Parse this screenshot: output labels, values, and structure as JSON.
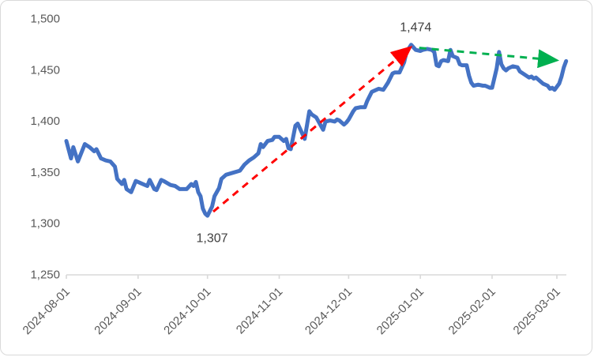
{
  "chart_data": {
    "type": "line",
    "title": "",
    "grid": false,
    "legend": false,
    "line_color": "#4472C4",
    "axis_color": "#d9d9d9",
    "axis_label_color": "#595959",
    "annotation_color": "#404040",
    "y_axis": {
      "min": 1250,
      "max": 1500,
      "tick_values": [
        1500,
        1450,
        1400,
        1350,
        1300,
        1250
      ],
      "tick_labels": [
        "1,500",
        "1,450",
        "1,400",
        "1,350",
        "1,300",
        "1,250"
      ]
    },
    "x_axis": {
      "tick_labels": [
        "2024-08-01",
        "2024-09-01",
        "2024-10-01",
        "2024-11-01",
        "2024-12-01",
        "2025-01-01",
        "2025-02-01",
        "2025-03-01"
      ],
      "tick_days": [
        0,
        31,
        61,
        92,
        122,
        153,
        184,
        212
      ],
      "last_tick_day": 212,
      "rotation_deg": -45
    },
    "series": [
      {
        "name": "value-line",
        "color": "#4472C4",
        "points": [
          [
            0,
            1380
          ],
          [
            2,
            1363
          ],
          [
            3,
            1374
          ],
          [
            5,
            1360
          ],
          [
            8,
            1377
          ],
          [
            10,
            1374
          ],
          [
            12,
            1370
          ],
          [
            13,
            1372
          ],
          [
            15,
            1363
          ],
          [
            17,
            1361
          ],
          [
            19,
            1360
          ],
          [
            21,
            1355
          ],
          [
            22,
            1343
          ],
          [
            24,
            1338
          ],
          [
            25,
            1342
          ],
          [
            26,
            1333
          ],
          [
            28,
            1330
          ],
          [
            30,
            1341
          ],
          [
            32,
            1339
          ],
          [
            35,
            1336
          ],
          [
            36,
            1342
          ],
          [
            38,
            1333
          ],
          [
            39,
            1332
          ],
          [
            41,
            1342
          ],
          [
            42,
            1341
          ],
          [
            45,
            1337
          ],
          [
            47,
            1336
          ],
          [
            49,
            1333
          ],
          [
            52,
            1333
          ],
          [
            54,
            1338
          ],
          [
            55,
            1336
          ],
          [
            56,
            1340
          ],
          [
            57,
            1330
          ],
          [
            58,
            1326
          ],
          [
            59,
            1314
          ],
          [
            60,
            1309
          ],
          [
            61,
            1307
          ],
          [
            63,
            1316
          ],
          [
            64,
            1326
          ],
          [
            66,
            1334
          ],
          [
            67,
            1343
          ],
          [
            69,
            1347
          ],
          [
            72,
            1349
          ],
          [
            75,
            1351
          ],
          [
            77,
            1357
          ],
          [
            79,
            1361
          ],
          [
            81,
            1364
          ],
          [
            83,
            1368
          ],
          [
            84,
            1377
          ],
          [
            85,
            1374
          ],
          [
            87,
            1380
          ],
          [
            89,
            1381
          ],
          [
            90,
            1384
          ],
          [
            92,
            1384
          ],
          [
            94,
            1380
          ],
          [
            95,
            1382
          ],
          [
            96,
            1373
          ],
          [
            97,
            1372
          ],
          [
            99,
            1395
          ],
          [
            100,
            1397
          ],
          [
            102,
            1387
          ],
          [
            103,
            1382
          ],
          [
            105,
            1409
          ],
          [
            106,
            1406
          ],
          [
            108,
            1403
          ],
          [
            110,
            1395
          ],
          [
            111,
            1391
          ],
          [
            112,
            1399
          ],
          [
            114,
            1400
          ],
          [
            116,
            1399
          ],
          [
            117,
            1401
          ],
          [
            118,
            1400
          ],
          [
            120,
            1396
          ],
          [
            121,
            1398
          ],
          [
            122,
            1401
          ],
          [
            124,
            1409
          ],
          [
            125,
            1412
          ],
          [
            127,
            1413
          ],
          [
            129,
            1413
          ],
          [
            130,
            1419
          ],
          [
            132,
            1428
          ],
          [
            134,
            1430
          ],
          [
            135,
            1431
          ],
          [
            137,
            1430
          ],
          [
            139,
            1437
          ],
          [
            141,
            1446
          ],
          [
            142,
            1447
          ],
          [
            144,
            1447
          ],
          [
            146,
            1457
          ],
          [
            147,
            1467
          ],
          [
            149,
            1474
          ],
          [
            151,
            1469
          ],
          [
            153,
            1468
          ],
          [
            154,
            1469
          ],
          [
            156,
            1470
          ],
          [
            158,
            1469
          ],
          [
            159,
            1467
          ],
          [
            160,
            1454
          ],
          [
            161,
            1453
          ],
          [
            162,
            1458
          ],
          [
            163,
            1459
          ],
          [
            165,
            1458
          ],
          [
            166,
            1469
          ],
          [
            167,
            1463
          ],
          [
            169,
            1461
          ],
          [
            170,
            1455
          ],
          [
            171,
            1454
          ],
          [
            173,
            1454
          ],
          [
            174,
            1444
          ],
          [
            175,
            1437
          ],
          [
            176,
            1434
          ],
          [
            178,
            1435
          ],
          [
            180,
            1434
          ],
          [
            181,
            1434
          ],
          [
            183,
            1432
          ],
          [
            184,
            1432
          ],
          [
            186,
            1451
          ],
          [
            187,
            1467
          ],
          [
            188,
            1455
          ],
          [
            189,
            1451
          ],
          [
            190,
            1449
          ],
          [
            191,
            1451
          ],
          [
            193,
            1453
          ],
          [
            195,
            1452
          ],
          [
            196,
            1448
          ],
          [
            198,
            1445
          ],
          [
            200,
            1442
          ],
          [
            201,
            1443
          ],
          [
            202,
            1441
          ],
          [
            203,
            1442
          ],
          [
            205,
            1438
          ],
          [
            206,
            1436
          ],
          [
            208,
            1434
          ],
          [
            209,
            1431
          ],
          [
            210,
            1432
          ],
          [
            211,
            1430
          ],
          [
            213,
            1436
          ],
          [
            214,
            1443
          ],
          [
            215,
            1452
          ],
          [
            216,
            1458
          ]
        ]
      }
    ],
    "annotations": [
      {
        "name": "peak-annotation",
        "text": "1,474",
        "day": 151,
        "value": 1491
      },
      {
        "name": "trough-annotation",
        "text": "1,307",
        "day": 63,
        "value": 1285
      }
    ],
    "arrows": [
      {
        "name": "uptrend-arrow",
        "color": "#FF0000",
        "from": {
          "day": 63.5,
          "value": 1311
        },
        "to": {
          "day": 148,
          "value": 1470
        }
      },
      {
        "name": "downtrend-arrow",
        "color": "#00B050",
        "from": {
          "day": 152.5,
          "value": 1471
        },
        "to": {
          "day": 211,
          "value": 1459
        }
      }
    ]
  }
}
